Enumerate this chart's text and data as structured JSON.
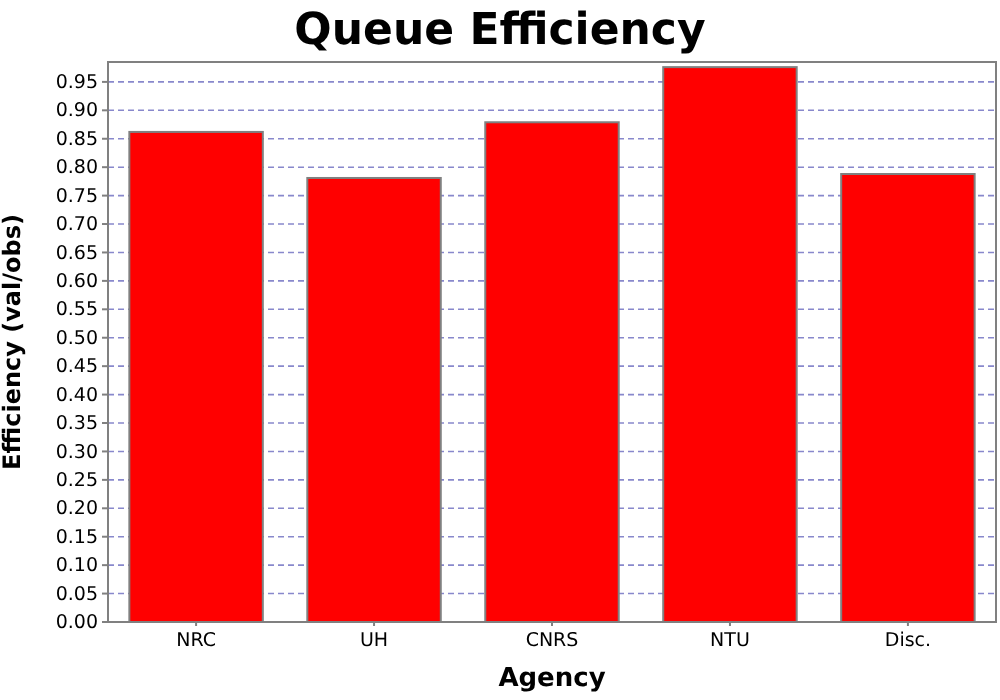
{
  "chart_data": {
    "type": "bar",
    "title": "Queue Efficiency",
    "xlabel": "Agency",
    "ylabel": "Efficiency (val/obs)",
    "categories": [
      "NRC",
      "UH",
      "CNRS",
      "NTU",
      "Disc."
    ],
    "values": [
      0.862,
      0.781,
      0.879,
      0.976,
      0.788
    ],
    "color": "#ff0000",
    "ylim": [
      0,
      0.985
    ],
    "yticks": [
      {
        "value": 0,
        "label": "0.00"
      },
      {
        "value": 0.05,
        "label": "0.05"
      },
      {
        "value": 0.1,
        "label": "0.10"
      },
      {
        "value": 0.15,
        "label": "0.15"
      },
      {
        "value": 0.2,
        "label": "0.20"
      },
      {
        "value": 0.25,
        "label": "0.25"
      },
      {
        "value": 0.3,
        "label": "0.30"
      },
      {
        "value": 0.35,
        "label": "0.35"
      },
      {
        "value": 0.4,
        "label": "0.40"
      },
      {
        "value": 0.45,
        "label": "0.45"
      },
      {
        "value": 0.5,
        "label": "0.50"
      },
      {
        "value": 0.55,
        "label": "0.55"
      },
      {
        "value": 0.6,
        "label": "0.60"
      },
      {
        "value": 0.65,
        "label": "0.65"
      },
      {
        "value": 0.7,
        "label": "0.70"
      },
      {
        "value": 0.75,
        "label": "0.75"
      },
      {
        "value": 0.8,
        "label": "0.80"
      },
      {
        "value": 0.85,
        "label": "0.85"
      },
      {
        "value": 0.9,
        "label": "0.90"
      },
      {
        "value": 0.95,
        "label": "0.95"
      }
    ],
    "grid": "y"
  }
}
